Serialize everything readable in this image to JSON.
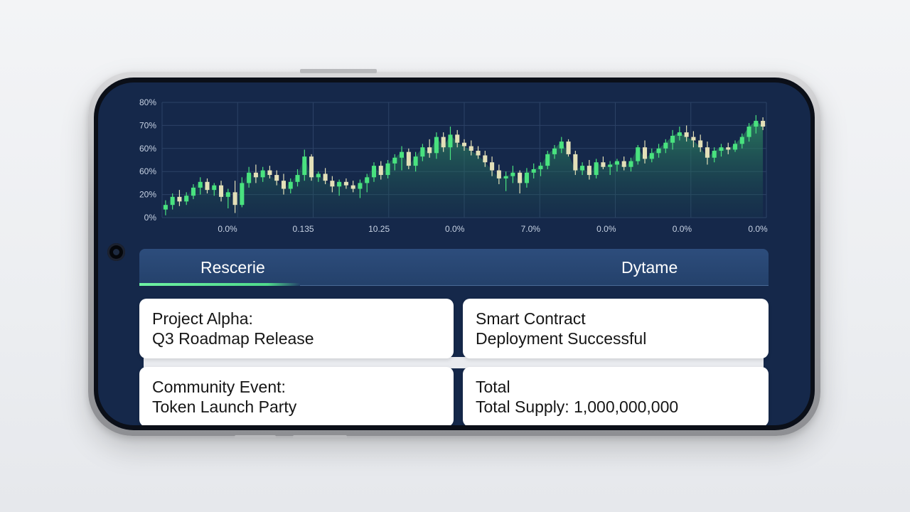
{
  "tabs": [
    {
      "label": "Rescerie",
      "active": true
    },
    {
      "label": "Dytame",
      "active": false
    }
  ],
  "cards": [
    {
      "line1": "Project Alpha:",
      "line2": "Q3 Roadmap Release"
    },
    {
      "line1": "Smart Contract",
      "line2": "Deployment Successful"
    },
    {
      "line1": "Community Event:",
      "line2": "Token Launch Party"
    },
    {
      "line1": "Total",
      "line2": "Total Supply: 1,000,000,000"
    }
  ],
  "colors": {
    "screen_bg": "#15284a",
    "up_candle": "#49e27f",
    "down_candle": "#e3e0b8",
    "grid": "#2c4266",
    "area_fill": "#2f8f63",
    "tab_indicator": "#6ff2a3"
  },
  "chart_data": {
    "type": "candlestick",
    "y_tick_labels": [
      "80%",
      "70%",
      "60%",
      "60%",
      "20%",
      "0%"
    ],
    "x_tick_labels": [
      "0.0%",
      "0.135",
      "10.25",
      "0.0%",
      "7.0%",
      "0.0%",
      "0.0%",
      "0.0%"
    ],
    "grid": true,
    "area_under_close": true,
    "y_range": [
      0,
      5
    ],
    "candles": [
      {
        "o": 0.35,
        "h": 0.75,
        "l": 0.1,
        "c": 0.55
      },
      {
        "o": 0.55,
        "h": 1.05,
        "l": 0.35,
        "c": 0.9
      },
      {
        "o": 0.9,
        "h": 1.2,
        "l": 0.5,
        "c": 0.7
      },
      {
        "o": 0.7,
        "h": 1.1,
        "l": 0.55,
        "c": 0.95
      },
      {
        "o": 0.95,
        "h": 1.45,
        "l": 0.8,
        "c": 1.3
      },
      {
        "o": 1.3,
        "h": 1.75,
        "l": 1.0,
        "c": 1.55
      },
      {
        "o": 1.55,
        "h": 1.7,
        "l": 1.05,
        "c": 1.2
      },
      {
        "o": 1.2,
        "h": 1.5,
        "l": 0.95,
        "c": 1.4
      },
      {
        "o": 1.4,
        "h": 1.6,
        "l": 0.7,
        "c": 0.9
      },
      {
        "o": 0.9,
        "h": 1.25,
        "l": 0.4,
        "c": 1.1
      },
      {
        "o": 1.1,
        "h": 1.6,
        "l": 0.2,
        "c": 0.55
      },
      {
        "o": 0.55,
        "h": 1.75,
        "l": 0.45,
        "c": 1.5
      },
      {
        "o": 1.5,
        "h": 2.2,
        "l": 1.3,
        "c": 1.95
      },
      {
        "o": 1.95,
        "h": 2.3,
        "l": 1.5,
        "c": 1.75
      },
      {
        "o": 1.75,
        "h": 2.2,
        "l": 1.55,
        "c": 2.05
      },
      {
        "o": 2.05,
        "h": 2.25,
        "l": 1.7,
        "c": 1.85
      },
      {
        "o": 1.85,
        "h": 2.05,
        "l": 1.4,
        "c": 1.6
      },
      {
        "o": 1.6,
        "h": 1.9,
        "l": 1.0,
        "c": 1.25
      },
      {
        "o": 1.25,
        "h": 1.7,
        "l": 1.05,
        "c": 1.55
      },
      {
        "o": 1.55,
        "h": 2.1,
        "l": 1.35,
        "c": 1.85
      },
      {
        "o": 1.85,
        "h": 2.95,
        "l": 1.6,
        "c": 2.65
      },
      {
        "o": 2.65,
        "h": 2.75,
        "l": 1.6,
        "c": 1.75
      },
      {
        "o": 1.75,
        "h": 2.0,
        "l": 1.55,
        "c": 1.9
      },
      {
        "o": 1.9,
        "h": 2.15,
        "l": 1.45,
        "c": 1.6
      },
      {
        "o": 1.6,
        "h": 1.8,
        "l": 1.1,
        "c": 1.35
      },
      {
        "o": 1.35,
        "h": 1.65,
        "l": 0.95,
        "c": 1.55
      },
      {
        "o": 1.55,
        "h": 1.7,
        "l": 1.25,
        "c": 1.4
      },
      {
        "o": 1.4,
        "h": 1.6,
        "l": 1.1,
        "c": 1.25
      },
      {
        "o": 1.25,
        "h": 1.65,
        "l": 0.85,
        "c": 1.5
      },
      {
        "o": 1.5,
        "h": 1.9,
        "l": 1.1,
        "c": 1.75
      },
      {
        "o": 1.75,
        "h": 2.4,
        "l": 1.55,
        "c": 2.25
      },
      {
        "o": 2.25,
        "h": 2.45,
        "l": 1.65,
        "c": 1.85
      },
      {
        "o": 1.85,
        "h": 2.5,
        "l": 1.7,
        "c": 2.35
      },
      {
        "o": 2.35,
        "h": 2.75,
        "l": 2.05,
        "c": 2.6
      },
      {
        "o": 2.6,
        "h": 3.1,
        "l": 2.05,
        "c": 2.85
      },
      {
        "o": 2.85,
        "h": 3.0,
        "l": 2.1,
        "c": 2.25
      },
      {
        "o": 2.25,
        "h": 2.85,
        "l": 2.0,
        "c": 2.65
      },
      {
        "o": 2.65,
        "h": 3.2,
        "l": 2.45,
        "c": 3.05
      },
      {
        "o": 3.05,
        "h": 3.4,
        "l": 2.6,
        "c": 2.8
      },
      {
        "o": 2.8,
        "h": 3.7,
        "l": 2.55,
        "c": 3.5
      },
      {
        "o": 3.5,
        "h": 3.7,
        "l": 2.85,
        "c": 3.05
      },
      {
        "o": 3.05,
        "h": 3.95,
        "l": 2.5,
        "c": 3.6
      },
      {
        "o": 3.6,
        "h": 3.8,
        "l": 3.05,
        "c": 3.25
      },
      {
        "o": 3.25,
        "h": 3.4,
        "l": 2.9,
        "c": 3.1
      },
      {
        "o": 3.1,
        "h": 3.35,
        "l": 2.7,
        "c": 2.9
      },
      {
        "o": 2.9,
        "h": 3.1,
        "l": 2.55,
        "c": 2.7
      },
      {
        "o": 2.7,
        "h": 2.9,
        "l": 2.2,
        "c": 2.4
      },
      {
        "o": 2.4,
        "h": 2.65,
        "l": 1.8,
        "c": 2.05
      },
      {
        "o": 2.05,
        "h": 2.3,
        "l": 1.45,
        "c": 1.7
      },
      {
        "o": 1.7,
        "h": 2.0,
        "l": 1.15,
        "c": 1.8
      },
      {
        "o": 1.8,
        "h": 2.25,
        "l": 1.5,
        "c": 1.95
      },
      {
        "o": 1.95,
        "h": 2.05,
        "l": 1.05,
        "c": 1.5
      },
      {
        "o": 1.5,
        "h": 2.15,
        "l": 1.3,
        "c": 1.95
      },
      {
        "o": 1.95,
        "h": 2.35,
        "l": 1.7,
        "c": 2.1
      },
      {
        "o": 2.1,
        "h": 2.4,
        "l": 1.8,
        "c": 2.25
      },
      {
        "o": 2.25,
        "h": 2.9,
        "l": 2.1,
        "c": 2.75
      },
      {
        "o": 2.75,
        "h": 3.15,
        "l": 2.55,
        "c": 3.0
      },
      {
        "o": 3.0,
        "h": 3.5,
        "l": 2.8,
        "c": 3.3
      },
      {
        "o": 3.3,
        "h": 3.4,
        "l": 2.65,
        "c": 2.75
      },
      {
        "o": 2.75,
        "h": 2.9,
        "l": 1.85,
        "c": 2.05
      },
      {
        "o": 2.05,
        "h": 2.4,
        "l": 1.85,
        "c": 2.25
      },
      {
        "o": 2.25,
        "h": 2.5,
        "l": 1.65,
        "c": 1.85
      },
      {
        "o": 1.85,
        "h": 2.55,
        "l": 1.7,
        "c": 2.4
      },
      {
        "o": 2.4,
        "h": 2.65,
        "l": 2.1,
        "c": 2.2
      },
      {
        "o": 2.2,
        "h": 2.45,
        "l": 1.85,
        "c": 2.3
      },
      {
        "o": 2.3,
        "h": 2.55,
        "l": 2.0,
        "c": 2.45
      },
      {
        "o": 2.45,
        "h": 2.65,
        "l": 2.05,
        "c": 2.2
      },
      {
        "o": 2.2,
        "h": 2.6,
        "l": 2.0,
        "c": 2.45
      },
      {
        "o": 2.45,
        "h": 3.15,
        "l": 2.3,
        "c": 3.05
      },
      {
        "o": 3.05,
        "h": 3.35,
        "l": 2.35,
        "c": 2.55
      },
      {
        "o": 2.55,
        "h": 3.0,
        "l": 2.4,
        "c": 2.8
      },
      {
        "o": 2.8,
        "h": 3.2,
        "l": 2.6,
        "c": 3.0
      },
      {
        "o": 3.0,
        "h": 3.4,
        "l": 2.8,
        "c": 3.25
      },
      {
        "o": 3.25,
        "h": 3.8,
        "l": 2.95,
        "c": 3.55
      },
      {
        "o": 3.55,
        "h": 3.95,
        "l": 3.35,
        "c": 3.7
      },
      {
        "o": 3.7,
        "h": 4.0,
        "l": 3.3,
        "c": 3.5
      },
      {
        "o": 3.5,
        "h": 3.75,
        "l": 3.05,
        "c": 3.35
      },
      {
        "o": 3.35,
        "h": 3.6,
        "l": 2.85,
        "c": 3.05
      },
      {
        "o": 3.05,
        "h": 3.3,
        "l": 2.3,
        "c": 2.6
      },
      {
        "o": 2.6,
        "h": 3.05,
        "l": 2.4,
        "c": 2.9
      },
      {
        "o": 2.9,
        "h": 3.2,
        "l": 2.65,
        "c": 3.05
      },
      {
        "o": 3.05,
        "h": 3.25,
        "l": 2.75,
        "c": 2.95
      },
      {
        "o": 2.95,
        "h": 3.35,
        "l": 2.85,
        "c": 3.2
      },
      {
        "o": 3.2,
        "h": 3.65,
        "l": 3.0,
        "c": 3.5
      },
      {
        "o": 3.5,
        "h": 4.1,
        "l": 3.3,
        "c": 3.95
      },
      {
        "o": 3.95,
        "h": 4.45,
        "l": 3.65,
        "c": 4.2
      },
      {
        "o": 4.2,
        "h": 4.35,
        "l": 3.8,
        "c": 3.95
      }
    ]
  }
}
